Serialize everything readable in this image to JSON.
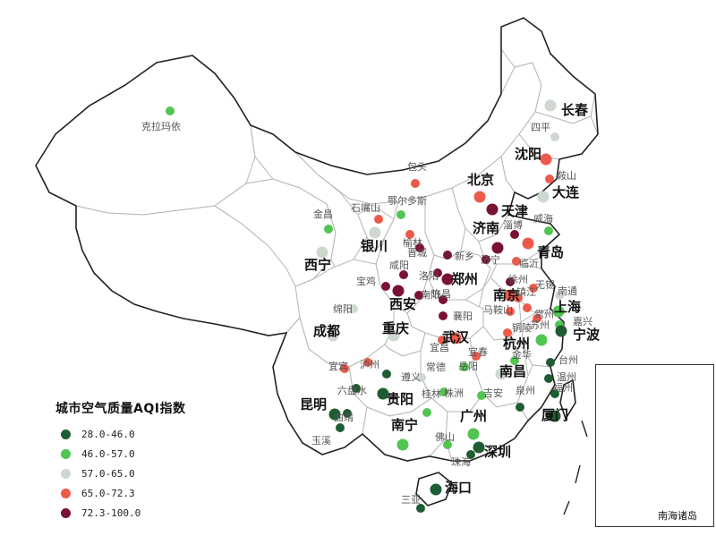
{
  "legend": {
    "title": "城市空气质量AQI指数",
    "items": [
      {
        "label": "28.0-46.0",
        "color": "#1e5c33"
      },
      {
        "label": "46.0-57.0",
        "color": "#52c452"
      },
      {
        "label": "57.0-65.0",
        "color": "#cfd8cf"
      },
      {
        "label": "65.0-72.3",
        "color": "#ec5a4b"
      },
      {
        "label": "72.3-100.0",
        "color": "#7a1232"
      }
    ]
  },
  "inset": {
    "label": "南海诸岛"
  },
  "cities": [
    {
      "name": "克拉玛依",
      "cls": 1,
      "major": false
    },
    {
      "name": "长春",
      "cls": 2,
      "major": true
    },
    {
      "name": "四平",
      "cls": 2,
      "major": false
    },
    {
      "name": "沈阳",
      "cls": 3,
      "major": true
    },
    {
      "name": "鞍山",
      "cls": 3,
      "major": false
    },
    {
      "name": "大连",
      "cls": 2,
      "major": true
    },
    {
      "name": "包头",
      "cls": 3,
      "major": false
    },
    {
      "name": "鄂尔多斯",
      "cls": 1,
      "major": false
    },
    {
      "name": "北京",
      "cls": 3,
      "major": true
    },
    {
      "name": "天津",
      "cls": 4,
      "major": true
    },
    {
      "name": "金昌",
      "cls": 1,
      "major": false
    },
    {
      "name": "石嘴山",
      "cls": 3,
      "major": false
    },
    {
      "name": "银川",
      "cls": 2,
      "major": true
    },
    {
      "name": "榆林",
      "cls": 3,
      "major": false
    },
    {
      "name": "济南",
      "cls": 4,
      "major": true
    },
    {
      "name": "淄博",
      "cls": 4,
      "major": false
    },
    {
      "name": "青岛",
      "cls": 3,
      "major": true
    },
    {
      "name": "威海",
      "cls": 1,
      "major": false
    },
    {
      "name": "西宁",
      "cls": 2,
      "major": true
    },
    {
      "name": "晋城",
      "cls": 4,
      "major": false
    },
    {
      "name": "新乡",
      "cls": 4,
      "major": false
    },
    {
      "name": "济宁",
      "cls": 4,
      "major": false
    },
    {
      "name": "临沂",
      "cls": 3,
      "major": false
    },
    {
      "name": "咸阳",
      "cls": 4,
      "major": false
    },
    {
      "name": "洛阳",
      "cls": 4,
      "major": false
    },
    {
      "name": "郑州",
      "cls": 4,
      "major": true
    },
    {
      "name": "宝鸡",
      "cls": 4,
      "major": false
    },
    {
      "name": "徐州",
      "cls": 4,
      "major": false
    },
    {
      "name": "无锡",
      "cls": 3,
      "major": false
    },
    {
      "name": "南通",
      "cls": 2,
      "major": false
    },
    {
      "name": "西安",
      "cls": 4,
      "major": true
    },
    {
      "name": "南阳",
      "cls": 4,
      "major": false
    },
    {
      "name": "许昌",
      "cls": 4,
      "major": false
    },
    {
      "name": "南京",
      "cls": 3,
      "major": true
    },
    {
      "name": "镇江",
      "cls": 3,
      "major": false
    },
    {
      "name": "常州",
      "cls": 3,
      "major": false
    },
    {
      "name": "上海",
      "cls": 1,
      "major": true
    },
    {
      "name": "绵阳",
      "cls": 2,
      "major": false
    },
    {
      "name": "襄阳",
      "cls": 4,
      "major": false
    },
    {
      "name": "马鞍山",
      "cls": 3,
      "major": false
    },
    {
      "name": "苏州",
      "cls": 3,
      "major": false
    },
    {
      "name": "嘉兴",
      "cls": 1,
      "major": false
    },
    {
      "name": "成都",
      "cls": 2,
      "major": true
    },
    {
      "name": "重庆",
      "cls": 2,
      "major": true
    },
    {
      "name": "宜昌",
      "cls": 3,
      "major": false
    },
    {
      "name": "铜陵",
      "cls": 3,
      "major": false
    },
    {
      "name": "武汉",
      "cls": 3,
      "major": true
    },
    {
      "name": "杭州",
      "cls": 1,
      "major": true
    },
    {
      "name": "宁波",
      "cls": 0,
      "major": true
    },
    {
      "name": "宜宾",
      "cls": 3,
      "major": false
    },
    {
      "name": "泸州",
      "cls": 3,
      "major": false
    },
    {
      "name": "宜春",
      "cls": 3,
      "major": false
    },
    {
      "name": "金华",
      "cls": 1,
      "major": false
    },
    {
      "name": "台州",
      "cls": 0,
      "major": false
    },
    {
      "name": "遵义",
      "cls": 0,
      "major": false
    },
    {
      "name": "常德",
      "cls": 2,
      "major": false
    },
    {
      "name": "岳阳",
      "cls": 1,
      "major": false
    },
    {
      "name": "南昌",
      "cls": 2,
      "major": true
    },
    {
      "name": "温州",
      "cls": 0,
      "major": false
    },
    {
      "name": "六盘水",
      "cls": 0,
      "major": false
    },
    {
      "name": "昆明",
      "cls": 0,
      "major": true
    },
    {
      "name": "贵阳",
      "cls": 0,
      "major": true
    },
    {
      "name": "株洲",
      "cls": 1,
      "major": false
    },
    {
      "name": "吉安",
      "cls": 1,
      "major": false
    },
    {
      "name": "泉州",
      "cls": 0,
      "major": false
    },
    {
      "name": "福州",
      "cls": 0,
      "major": false
    },
    {
      "name": "曲靖",
      "cls": 0,
      "major": false
    },
    {
      "name": "桂林",
      "cls": 1,
      "major": false
    },
    {
      "name": "广州",
      "cls": 1,
      "major": true
    },
    {
      "name": "厦门",
      "cls": 0,
      "major": true
    },
    {
      "name": "玉溪",
      "cls": 0,
      "major": false
    },
    {
      "name": "南宁",
      "cls": 1,
      "major": true
    },
    {
      "name": "佛山",
      "cls": 1,
      "major": false
    },
    {
      "name": "深圳",
      "cls": 0,
      "major": true
    },
    {
      "name": "珠海",
      "cls": 0,
      "major": false
    },
    {
      "name": "海口",
      "cls": 0,
      "major": true
    },
    {
      "name": "三亚",
      "cls": 0,
      "major": false
    }
  ]
}
